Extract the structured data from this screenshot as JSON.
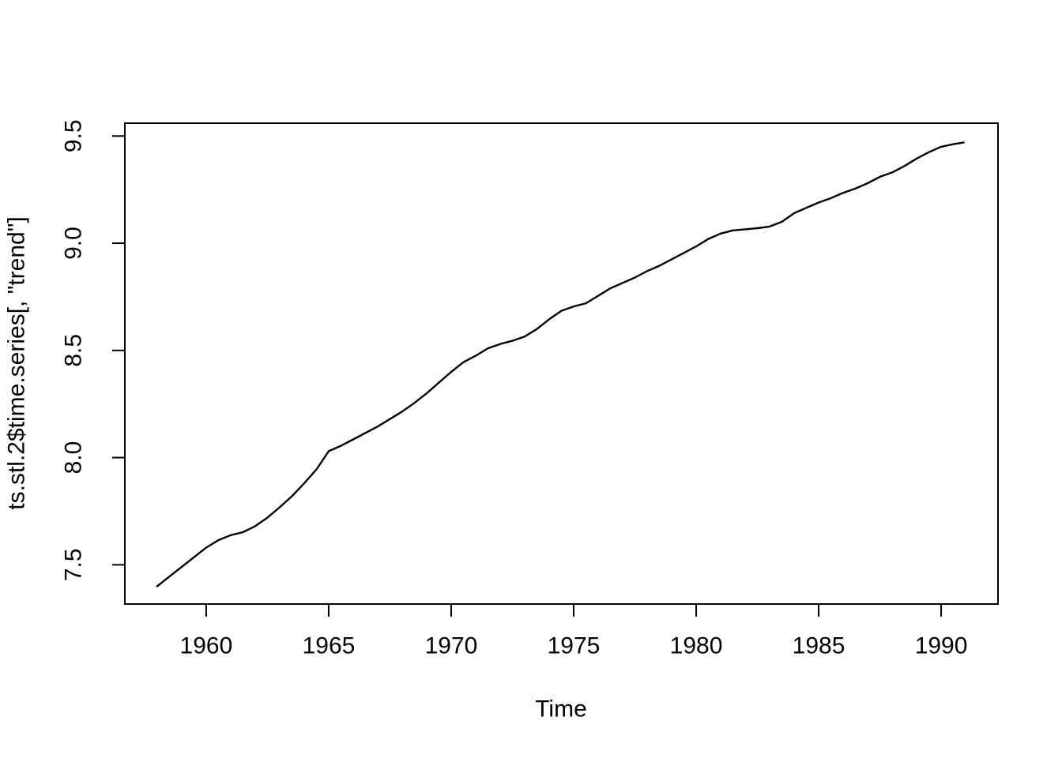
{
  "figure": {
    "background_color": "#ffffff",
    "axis_color": "#000000",
    "line_color": "#000000"
  },
  "chart_data": {
    "type": "line",
    "title": "",
    "xlabel": "Time",
    "ylabel": "ts.stl.2$time.series[, \"trend\"]",
    "x_ticks": [
      1960,
      1965,
      1970,
      1975,
      1980,
      1985,
      1990
    ],
    "y_ticks": [
      "7.5",
      "8.0",
      "8.5",
      "9.0",
      "9.5"
    ],
    "xlim": [
      1956.68,
      1992.32
    ],
    "ylim": [
      7.317,
      9.56
    ],
    "grid": false,
    "legend": false,
    "series": [
      {
        "name": "trend",
        "x": [
          1958.0,
          1958.5,
          1959.0,
          1959.5,
          1960.0,
          1960.5,
          1961.0,
          1961.5,
          1962.0,
          1962.5,
          1963.0,
          1963.5,
          1964.0,
          1964.5,
          1965.0,
          1965.5,
          1966.0,
          1966.5,
          1967.0,
          1967.5,
          1968.0,
          1968.5,
          1969.0,
          1969.5,
          1970.0,
          1970.5,
          1971.0,
          1971.5,
          1972.0,
          1972.5,
          1973.0,
          1973.5,
          1974.0,
          1974.5,
          1975.0,
          1975.5,
          1976.0,
          1976.5,
          1977.0,
          1977.5,
          1978.0,
          1978.5,
          1979.0,
          1979.5,
          1980.0,
          1980.5,
          1981.0,
          1981.5,
          1982.0,
          1982.5,
          1983.0,
          1983.5,
          1984.0,
          1984.5,
          1985.0,
          1985.5,
          1986.0,
          1986.5,
          1987.0,
          1987.5,
          1988.0,
          1988.5,
          1989.0,
          1989.5,
          1990.0,
          1990.5,
          1990.92
        ],
        "y": [
          7.4,
          7.445,
          7.49,
          7.535,
          7.58,
          7.615,
          7.638,
          7.652,
          7.68,
          7.72,
          7.768,
          7.82,
          7.88,
          7.945,
          8.03,
          8.055,
          8.085,
          8.115,
          8.145,
          8.18,
          8.215,
          8.255,
          8.3,
          8.35,
          8.4,
          8.445,
          8.475,
          8.51,
          8.53,
          8.545,
          8.565,
          8.6,
          8.645,
          8.685,
          8.705,
          8.72,
          8.755,
          8.79,
          8.815,
          8.84,
          8.87,
          8.895,
          8.925,
          8.955,
          8.985,
          9.02,
          9.045,
          9.06,
          9.065,
          9.07,
          9.078,
          9.1,
          9.14,
          9.165,
          9.19,
          9.21,
          9.235,
          9.255,
          9.28,
          9.31,
          9.33,
          9.36,
          9.395,
          9.425,
          9.45,
          9.462,
          9.47
        ]
      }
    ]
  }
}
